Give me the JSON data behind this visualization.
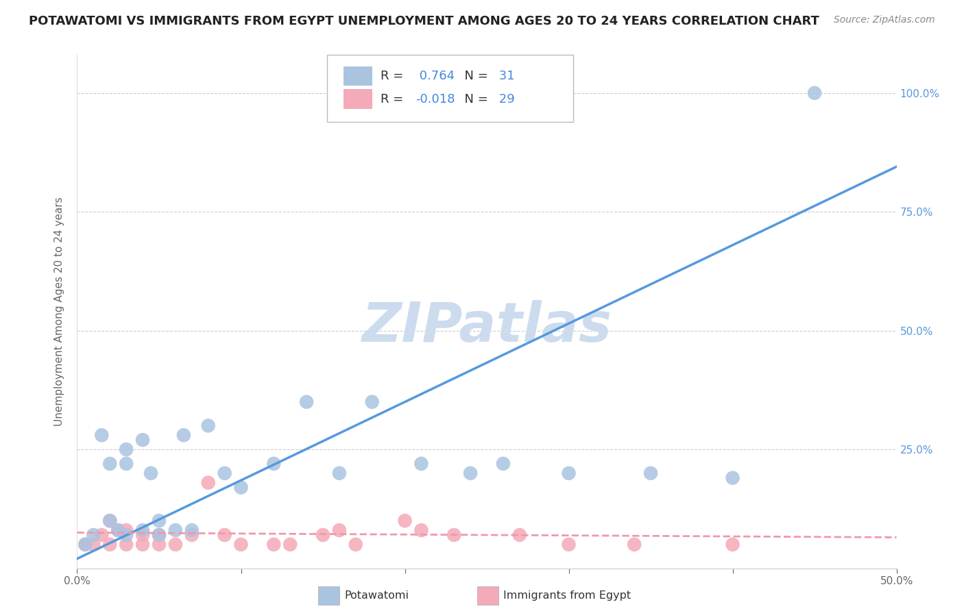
{
  "title": "POTAWATOMI VS IMMIGRANTS FROM EGYPT UNEMPLOYMENT AMONG AGES 20 TO 24 YEARS CORRELATION CHART",
  "source": "Source: ZipAtlas.com",
  "ylabel": "Unemployment Among Ages 20 to 24 years",
  "xlim": [
    0.0,
    0.5
  ],
  "ylim": [
    0.0,
    1.08
  ],
  "blue_R": 0.764,
  "blue_N": 31,
  "pink_R": -0.018,
  "pink_N": 29,
  "blue_color": "#aac4e0",
  "pink_color": "#f4aab8",
  "blue_line_color": "#5599dd",
  "pink_line_color": "#ee99aa",
  "grid_color": "#cccccc",
  "watermark": "ZIPatlas",
  "watermark_color": "#ccdcee",
  "blue_scatter_x": [
    0.005,
    0.01,
    0.015,
    0.02,
    0.02,
    0.025,
    0.03,
    0.03,
    0.03,
    0.04,
    0.04,
    0.045,
    0.05,
    0.05,
    0.06,
    0.065,
    0.07,
    0.08,
    0.09,
    0.1,
    0.12,
    0.14,
    0.16,
    0.18,
    0.21,
    0.24,
    0.26,
    0.3,
    0.35,
    0.4,
    0.45
  ],
  "blue_scatter_y": [
    0.05,
    0.07,
    0.28,
    0.1,
    0.22,
    0.08,
    0.22,
    0.25,
    0.07,
    0.27,
    0.08,
    0.2,
    0.07,
    0.1,
    0.08,
    0.28,
    0.08,
    0.3,
    0.2,
    0.17,
    0.22,
    0.35,
    0.2,
    0.35,
    0.22,
    0.2,
    0.22,
    0.2,
    0.2,
    0.19,
    1.0
  ],
  "pink_scatter_x": [
    0.005,
    0.01,
    0.015,
    0.02,
    0.02,
    0.025,
    0.03,
    0.03,
    0.04,
    0.04,
    0.05,
    0.05,
    0.06,
    0.07,
    0.08,
    0.09,
    0.1,
    0.12,
    0.13,
    0.15,
    0.16,
    0.17,
    0.2,
    0.21,
    0.23,
    0.27,
    0.3,
    0.34,
    0.4
  ],
  "pink_scatter_y": [
    0.05,
    0.05,
    0.07,
    0.05,
    0.1,
    0.08,
    0.05,
    0.08,
    0.05,
    0.07,
    0.05,
    0.07,
    0.05,
    0.07,
    0.18,
    0.07,
    0.05,
    0.05,
    0.05,
    0.07,
    0.08,
    0.05,
    0.1,
    0.08,
    0.07,
    0.07,
    0.05,
    0.05,
    0.05
  ],
  "legend_label_blue": "Potawatomi",
  "legend_label_pink": "Immigrants from Egypt",
  "title_fontsize": 13,
  "axis_label_fontsize": 11,
  "tick_fontsize": 11,
  "legend_fontsize": 13,
  "r_n_color": "#4488dd",
  "legend_text_color": "#333333"
}
